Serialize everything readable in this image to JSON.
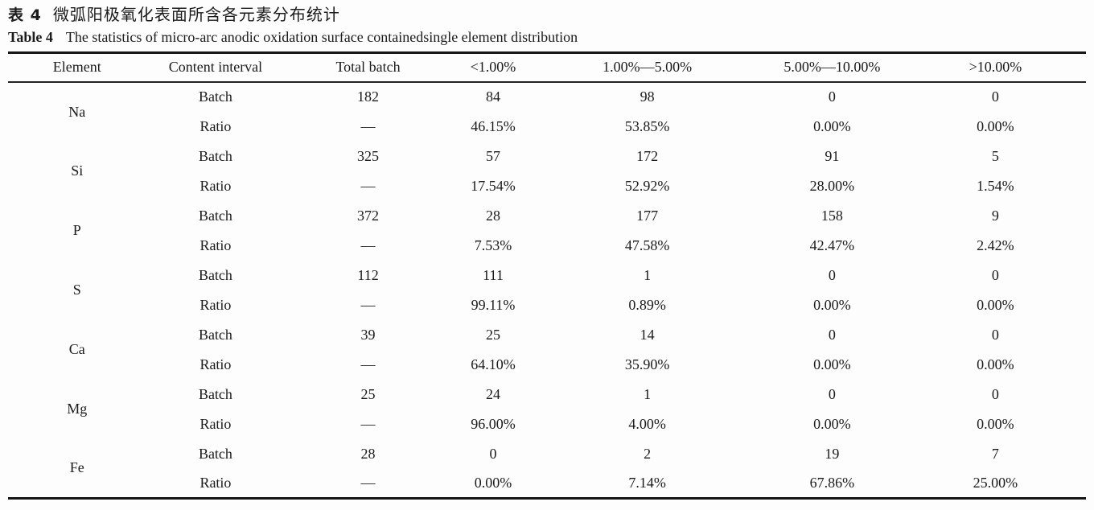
{
  "titles": {
    "zh_label": "表 4",
    "zh_text": "微弧阳极氧化表面所含各元素分布统计",
    "en_label": "Table 4",
    "en_text": "The statistics of micro-arc anodic oxidation surface containedsingle element distribution"
  },
  "chart_data": {
    "type": "table",
    "columns": [
      "Element",
      "Content interval",
      "Total batch",
      "<1.00%",
      "1.00%—5.00%",
      "5.00%—10.00%",
      ">10.00%"
    ],
    "rows": [
      {
        "element": "Na",
        "sub": [
          {
            "label": "Batch",
            "values": [
              "182",
              "84",
              "98",
              "0",
              "0"
            ]
          },
          {
            "label": "Ratio",
            "values": [
              "—",
              "46.15%",
              "53.85%",
              "0.00%",
              "0.00%"
            ]
          }
        ]
      },
      {
        "element": "Si",
        "sub": [
          {
            "label": "Batch",
            "values": [
              "325",
              "57",
              "172",
              "91",
              "5"
            ]
          },
          {
            "label": "Ratio",
            "values": [
              "—",
              "17.54%",
              "52.92%",
              "28.00%",
              "1.54%"
            ]
          }
        ]
      },
      {
        "element": "P",
        "sub": [
          {
            "label": "Batch",
            "values": [
              "372",
              "28",
              "177",
              "158",
              "9"
            ]
          },
          {
            "label": "Ratio",
            "values": [
              "—",
              "7.53%",
              "47.58%",
              "42.47%",
              "2.42%"
            ]
          }
        ]
      },
      {
        "element": "S",
        "sub": [
          {
            "label": "Batch",
            "values": [
              "112",
              "111",
              "1",
              "0",
              "0"
            ]
          },
          {
            "label": "Ratio",
            "values": [
              "—",
              "99.11%",
              "0.89%",
              "0.00%",
              "0.00%"
            ]
          }
        ]
      },
      {
        "element": "Ca",
        "sub": [
          {
            "label": "Batch",
            "values": [
              "39",
              "25",
              "14",
              "0",
              "0"
            ]
          },
          {
            "label": "Ratio",
            "values": [
              "—",
              "64.10%",
              "35.90%",
              "0.00%",
              "0.00%"
            ]
          }
        ]
      },
      {
        "element": "Mg",
        "sub": [
          {
            "label": "Batch",
            "values": [
              "25",
              "24",
              "1",
              "0",
              "0"
            ]
          },
          {
            "label": "Ratio",
            "values": [
              "—",
              "96.00%",
              "4.00%",
              "0.00%",
              "0.00%"
            ]
          }
        ]
      },
      {
        "element": "Fe",
        "sub": [
          {
            "label": "Batch",
            "values": [
              "28",
              "0",
              "2",
              "19",
              "7"
            ]
          },
          {
            "label": "Ratio",
            "values": [
              "—",
              "0.00%",
              "7.14%",
              "67.86%",
              "25.00%"
            ]
          }
        ]
      }
    ]
  }
}
